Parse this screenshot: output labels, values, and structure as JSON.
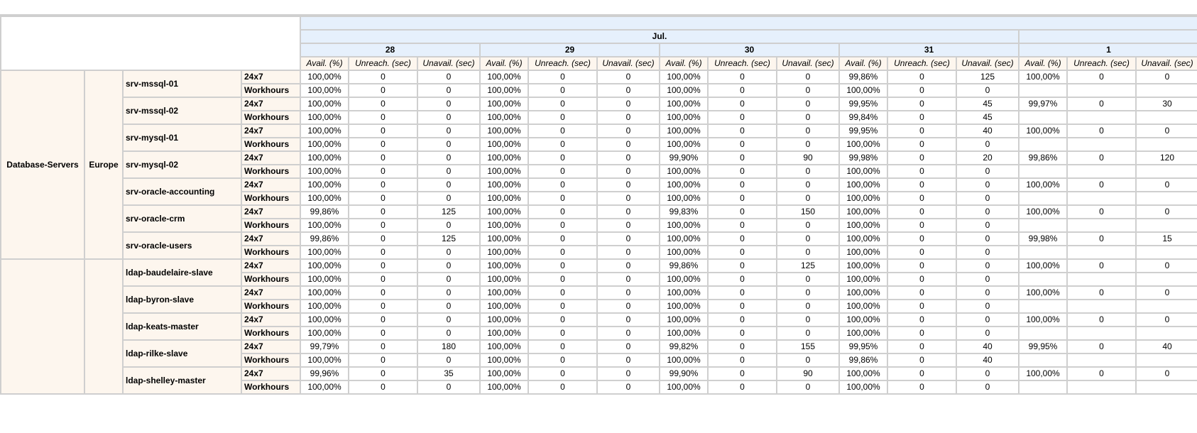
{
  "header": {
    "month": "Jul.",
    "next_month": "",
    "days": [
      "28",
      "29",
      "30",
      "31",
      "1"
    ],
    "metrics": [
      "Avail. (%)",
      "Unreach. (sec)",
      "Unavail. (sec)"
    ]
  },
  "groups": [
    {
      "group": "Database-Servers",
      "region": "Europe",
      "hosts": [
        {
          "host": "srv-mssql-01",
          "schedules": [
            {
              "name": "24x7",
              "values": [
                "100,00%",
                "0",
                "0",
                "100,00%",
                "0",
                "0",
                "100,00%",
                "0",
                "0",
                "99,86%",
                "0",
                "125",
                "100,00%",
                "0",
                "0"
              ]
            },
            {
              "name": "Workhours",
              "values": [
                "100,00%",
                "0",
                "0",
                "100,00%",
                "0",
                "0",
                "100,00%",
                "0",
                "0",
                "100,00%",
                "0",
                "0",
                "",
                "",
                ""
              ]
            }
          ]
        },
        {
          "host": "srv-mssql-02",
          "schedules": [
            {
              "name": "24x7",
              "values": [
                "100,00%",
                "0",
                "0",
                "100,00%",
                "0",
                "0",
                "100,00%",
                "0",
                "0",
                "99,95%",
                "0",
                "45",
                "99,97%",
                "0",
                "30"
              ]
            },
            {
              "name": "Workhours",
              "values": [
                "100,00%",
                "0",
                "0",
                "100,00%",
                "0",
                "0",
                "100,00%",
                "0",
                "0",
                "99,84%",
                "0",
                "45",
                "",
                "",
                ""
              ]
            }
          ]
        },
        {
          "host": "srv-mysql-01",
          "schedules": [
            {
              "name": "24x7",
              "values": [
                "100,00%",
                "0",
                "0",
                "100,00%",
                "0",
                "0",
                "100,00%",
                "0",
                "0",
                "99,95%",
                "0",
                "40",
                "100,00%",
                "0",
                "0"
              ]
            },
            {
              "name": "Workhours",
              "values": [
                "100,00%",
                "0",
                "0",
                "100,00%",
                "0",
                "0",
                "100,00%",
                "0",
                "0",
                "100,00%",
                "0",
                "0",
                "",
                "",
                ""
              ]
            }
          ]
        },
        {
          "host": "srv-mysql-02",
          "schedules": [
            {
              "name": "24x7",
              "values": [
                "100,00%",
                "0",
                "0",
                "100,00%",
                "0",
                "0",
                "99,90%",
                "0",
                "90",
                "99,98%",
                "0",
                "20",
                "99,86%",
                "0",
                "120"
              ]
            },
            {
              "name": "Workhours",
              "values": [
                "100,00%",
                "0",
                "0",
                "100,00%",
                "0",
                "0",
                "100,00%",
                "0",
                "0",
                "100,00%",
                "0",
                "0",
                "",
                "",
                ""
              ]
            }
          ]
        },
        {
          "host": "srv-oracle-accounting",
          "schedules": [
            {
              "name": "24x7",
              "values": [
                "100,00%",
                "0",
                "0",
                "100,00%",
                "0",
                "0",
                "100,00%",
                "0",
                "0",
                "100,00%",
                "0",
                "0",
                "100,00%",
                "0",
                "0"
              ]
            },
            {
              "name": "Workhours",
              "values": [
                "100,00%",
                "0",
                "0",
                "100,00%",
                "0",
                "0",
                "100,00%",
                "0",
                "0",
                "100,00%",
                "0",
                "0",
                "",
                "",
                ""
              ]
            }
          ]
        },
        {
          "host": "srv-oracle-crm",
          "schedules": [
            {
              "name": "24x7",
              "values": [
                "99,86%",
                "0",
                "125",
                "100,00%",
                "0",
                "0",
                "99,83%",
                "0",
                "150",
                "100,00%",
                "0",
                "0",
                "100,00%",
                "0",
                "0"
              ]
            },
            {
              "name": "Workhours",
              "values": [
                "100,00%",
                "0",
                "0",
                "100,00%",
                "0",
                "0",
                "100,00%",
                "0",
                "0",
                "100,00%",
                "0",
                "0",
                "",
                "",
                ""
              ]
            }
          ]
        },
        {
          "host": "srv-oracle-users",
          "schedules": [
            {
              "name": "24x7",
              "values": [
                "99,86%",
                "0",
                "125",
                "100,00%",
                "0",
                "0",
                "100,00%",
                "0",
                "0",
                "100,00%",
                "0",
                "0",
                "99,98%",
                "0",
                "15"
              ]
            },
            {
              "name": "Workhours",
              "values": [
                "100,00%",
                "0",
                "0",
                "100,00%",
                "0",
                "0",
                "100,00%",
                "0",
                "0",
                "100,00%",
                "0",
                "0",
                "",
                "",
                ""
              ]
            }
          ]
        }
      ]
    },
    {
      "group": "",
      "region": "",
      "hosts": [
        {
          "host": "ldap-baudelaire-slave",
          "schedules": [
            {
              "name": "24x7",
              "values": [
                "100,00%",
                "0",
                "0",
                "100,00%",
                "0",
                "0",
                "99,86%",
                "0",
                "125",
                "100,00%",
                "0",
                "0",
                "100,00%",
                "0",
                "0"
              ]
            },
            {
              "name": "Workhours",
              "values": [
                "100,00%",
                "0",
                "0",
                "100,00%",
                "0",
                "0",
                "100,00%",
                "0",
                "0",
                "100,00%",
                "0",
                "0",
                "",
                "",
                ""
              ]
            }
          ]
        },
        {
          "host": "ldap-byron-slave",
          "schedules": [
            {
              "name": "24x7",
              "values": [
                "100,00%",
                "0",
                "0",
                "100,00%",
                "0",
                "0",
                "100,00%",
                "0",
                "0",
                "100,00%",
                "0",
                "0",
                "100,00%",
                "0",
                "0"
              ]
            },
            {
              "name": "Workhours",
              "values": [
                "100,00%",
                "0",
                "0",
                "100,00%",
                "0",
                "0",
                "100,00%",
                "0",
                "0",
                "100,00%",
                "0",
                "0",
                "",
                "",
                ""
              ]
            }
          ]
        },
        {
          "host": "ldap-keats-master",
          "schedules": [
            {
              "name": "24x7",
              "values": [
                "100,00%",
                "0",
                "0",
                "100,00%",
                "0",
                "0",
                "100,00%",
                "0",
                "0",
                "100,00%",
                "0",
                "0",
                "100,00%",
                "0",
                "0"
              ]
            },
            {
              "name": "Workhours",
              "values": [
                "100,00%",
                "0",
                "0",
                "100,00%",
                "0",
                "0",
                "100,00%",
                "0",
                "0",
                "100,00%",
                "0",
                "0",
                "",
                "",
                ""
              ]
            }
          ]
        },
        {
          "host": "ldap-rilke-slave",
          "schedules": [
            {
              "name": "24x7",
              "values": [
                "99,79%",
                "0",
                "180",
                "100,00%",
                "0",
                "0",
                "99,82%",
                "0",
                "155",
                "99,95%",
                "0",
                "40",
                "99,95%",
                "0",
                "40"
              ]
            },
            {
              "name": "Workhours",
              "values": [
                "100,00%",
                "0",
                "0",
                "100,00%",
                "0",
                "0",
                "100,00%",
                "0",
                "0",
                "99,86%",
                "0",
                "40",
                "",
                "",
                ""
              ]
            }
          ]
        },
        {
          "host": "ldap-shelley-master",
          "schedules": [
            {
              "name": "24x7",
              "values": [
                "99,96%",
                "0",
                "35",
                "100,00%",
                "0",
                "0",
                "99,90%",
                "0",
                "90",
                "100,00%",
                "0",
                "0",
                "100,00%",
                "0",
                "0"
              ]
            },
            {
              "name": "Workhours",
              "values": [
                "100,00%",
                "0",
                "0",
                "100,00%",
                "0",
                "0",
                "100,00%",
                "0",
                "0",
                "100,00%",
                "0",
                "0",
                "",
                "",
                ""
              ]
            }
          ]
        }
      ]
    }
  ]
}
